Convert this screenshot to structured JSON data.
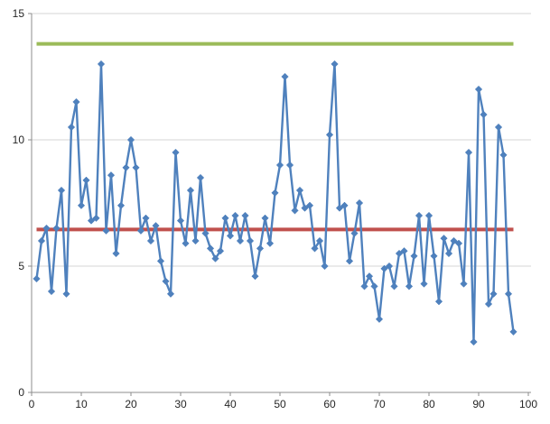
{
  "chart_data": {
    "type": "line",
    "title": "",
    "xlabel": "",
    "ylabel": "",
    "grid": "horizontal-only",
    "legend": "none",
    "x_axis": {
      "min": 0,
      "max": 100,
      "tick_step": 10,
      "tick_labels": [
        "0",
        "10",
        "20",
        "30",
        "40",
        "50",
        "60",
        "70",
        "80",
        "90",
        "100"
      ]
    },
    "y_axis": {
      "min": 0,
      "max": 15,
      "tick_step": 5,
      "tick_labels": [
        "0",
        "5",
        "10",
        "15"
      ]
    },
    "series": [
      {
        "name": "observations",
        "marker": "diamond",
        "color": "#4F81BD",
        "x_start": 1,
        "values": [
          4.5,
          6.0,
          6.5,
          4.0,
          6.5,
          8.0,
          3.9,
          10.5,
          11.5,
          7.4,
          8.4,
          6.8,
          6.9,
          13.0,
          6.4,
          8.6,
          5.5,
          7.4,
          8.9,
          10.0,
          8.9,
          6.4,
          6.9,
          6.0,
          6.6,
          5.2,
          4.4,
          3.9,
          9.5,
          6.8,
          5.9,
          8.0,
          6.0,
          8.5,
          6.3,
          5.7,
          5.3,
          5.6,
          6.9,
          6.2,
          7.0,
          6.0,
          7.0,
          6.0,
          4.6,
          5.7,
          6.9,
          5.9,
          7.9,
          9.0,
          12.5,
          9.0,
          7.2,
          8.0,
          7.3,
          7.4,
          5.7,
          6.0,
          5.0,
          10.2,
          13.0,
          7.3,
          7.4,
          5.2,
          6.3,
          7.5,
          4.2,
          4.6,
          4.2,
          2.9,
          4.9,
          5.0,
          4.2,
          5.5,
          5.6,
          4.2,
          5.4,
          7.0,
          4.3,
          7.0,
          5.4,
          3.6,
          6.1,
          5.5,
          6.0,
          5.9,
          4.3,
          9.5,
          2.0,
          12.0,
          11.0,
          3.5,
          3.9,
          10.5,
          9.4,
          3.9,
          2.4
        ]
      }
    ],
    "reference_lines": [
      {
        "name": "upper-limit-line",
        "value": 13.8,
        "color": "#9BBB59"
      },
      {
        "name": "center-line",
        "value": 6.45,
        "color": "#C0504D"
      }
    ],
    "colors": {
      "series_blue": "#4F81BD",
      "ref_green": "#9BBB59",
      "ref_red": "#C0504D",
      "gridline": "#D5D5D5",
      "axis_line": "#8C8C8C",
      "tick_text": "#262626",
      "background": "#FFFFFF"
    }
  }
}
